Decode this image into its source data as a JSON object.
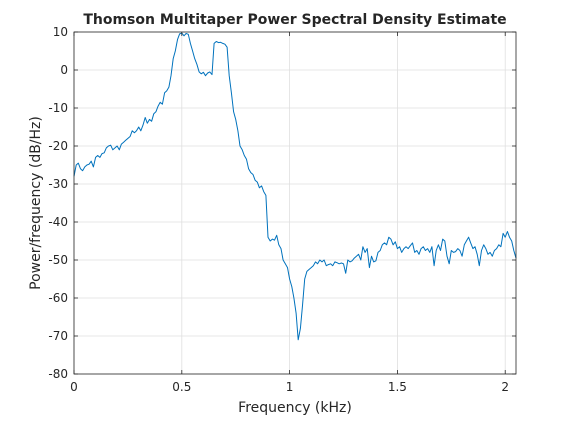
{
  "chart_data": {
    "type": "line",
    "title": "Thomson Multitaper Power Spectral Density Estimate",
    "xlabel": "Frequency (kHz)",
    "ylabel": "Power/frequency (dB/Hz)",
    "xlim": [
      0,
      2.05
    ],
    "ylim": [
      -80,
      10
    ],
    "xticks": [
      0,
      0.5,
      1,
      1.5,
      2
    ],
    "xtick_labels": [
      "0",
      "0.5",
      "1",
      "1.5",
      "2"
    ],
    "yticks": [
      10,
      0,
      -10,
      -20,
      -30,
      -40,
      -50,
      -60,
      -70,
      -80
    ],
    "ytick_labels": [
      "10",
      "0",
      "-10",
      "-20",
      "-30",
      "-40",
      "-50",
      "-60",
      "-70",
      "-80"
    ],
    "grid": true,
    "line_color": "#0072bd",
    "series": [
      {
        "x": [
          0,
          0.01,
          0.02,
          0.03,
          0.04,
          0.05,
          0.06,
          0.07,
          0.08,
          0.09,
          0.1,
          0.11,
          0.12,
          0.13,
          0.14,
          0.15,
          0.16,
          0.17,
          0.18,
          0.19,
          0.2,
          0.21,
          0.22,
          0.23,
          0.24,
          0.25,
          0.26,
          0.27,
          0.28,
          0.29,
          0.3,
          0.31,
          0.32,
          0.33,
          0.34,
          0.35,
          0.36,
          0.37,
          0.38,
          0.39,
          0.4,
          0.41,
          0.42,
          0.43,
          0.44,
          0.45,
          0.46,
          0.47,
          0.48,
          0.49,
          0.5,
          0.51,
          0.52,
          0.53,
          0.54,
          0.55,
          0.56,
          0.57,
          0.58,
          0.59,
          0.6,
          0.61,
          0.62,
          0.63,
          0.64,
          0.65,
          0.66,
          0.67,
          0.68,
          0.69,
          0.7,
          0.71,
          0.72,
          0.73,
          0.74,
          0.75,
          0.76,
          0.77,
          0.78,
          0.79,
          0.8,
          0.81,
          0.82,
          0.83,
          0.84,
          0.85,
          0.86,
          0.87,
          0.88,
          0.89,
          0.9,
          0.91,
          0.92,
          0.93,
          0.94,
          0.95,
          0.96,
          0.97,
          0.98,
          0.99,
          1,
          1.01,
          1.02,
          1.03,
          1.04,
          1.05,
          1.06,
          1.07,
          1.08,
          1.09,
          1.1,
          1.11,
          1.12,
          1.13,
          1.14,
          1.15,
          1.16,
          1.17,
          1.18,
          1.19,
          1.2,
          1.21,
          1.22,
          1.23,
          1.24,
          1.25,
          1.26,
          1.27,
          1.28,
          1.29,
          1.3,
          1.31,
          1.32,
          1.33,
          1.34,
          1.35,
          1.36,
          1.37,
          1.38,
          1.39,
          1.4,
          1.41,
          1.42,
          1.43,
          1.44,
          1.45,
          1.46,
          1.47,
          1.48,
          1.49,
          1.5,
          1.51,
          1.52,
          1.53,
          1.54,
          1.55,
          1.56,
          1.57,
          1.58,
          1.59,
          1.6,
          1.61,
          1.62,
          1.63,
          1.64,
          1.65,
          1.66,
          1.67,
          1.68,
          1.69,
          1.7,
          1.71,
          1.72,
          1.73,
          1.74,
          1.75,
          1.76,
          1.77,
          1.78,
          1.79,
          1.8,
          1.81,
          1.82,
          1.83,
          1.84,
          1.85,
          1.86,
          1.87,
          1.88,
          1.89,
          1.9,
          1.91,
          1.92,
          1.93,
          1.94,
          1.95,
          1.96,
          1.97,
          1.98,
          1.99,
          2,
          2.01,
          2.02,
          2.03,
          2.04,
          2.05
        ],
        "y": [
          -28,
          -25,
          -24.5,
          -26,
          -26.5,
          -25.5,
          -25,
          -24.8,
          -24,
          -25.5,
          -23,
          -22.5,
          -23,
          -22,
          -21.8,
          -20.5,
          -20,
          -19.8,
          -21,
          -20.5,
          -20,
          -21,
          -19.5,
          -19,
          -18.5,
          -18,
          -17.5,
          -16,
          -16.5,
          -16,
          -15,
          -16,
          -14.5,
          -12.5,
          -14,
          -13,
          -13.5,
          -11.5,
          -11,
          -9.5,
          -8.5,
          -9,
          -6,
          -5.5,
          -4.5,
          -1.5,
          3,
          5,
          8,
          9.5,
          9.7,
          9,
          9.6,
          9.4,
          7,
          5,
          3,
          1.5,
          -0.5,
          -1,
          -0.6,
          -1.5,
          -0.8,
          -0.5,
          -1.2,
          7,
          7.5,
          7.2,
          7.3,
          7,
          6.8,
          6,
          -1.5,
          -6,
          -11,
          -13,
          -16,
          -20,
          -21,
          -22.5,
          -23.5,
          -26,
          -27,
          -27.5,
          -29,
          -29.5,
          -31,
          -30.5,
          -32,
          -33,
          -44,
          -45,
          -44.5,
          -44.8,
          -43.5,
          -46,
          -47,
          -50,
          -51,
          -52,
          -55,
          -57,
          -60,
          -64,
          -71,
          -68,
          -62,
          -55,
          -53,
          -52.5,
          -52,
          -51.5,
          -50.5,
          -51,
          -50,
          -50.5,
          -50,
          -51.5,
          -51.2,
          -51,
          -51.5,
          -50.5,
          -50.7,
          -51,
          -50.8,
          -51,
          -53.5,
          -50,
          -50.5,
          -50.2,
          -49.5,
          -49,
          -48.5,
          -50,
          -46.5,
          -48,
          -47,
          -52,
          -49,
          -50.5,
          -50.2,
          -48,
          -47.5,
          -46,
          -45.5,
          -46,
          -44,
          -44.5,
          -46,
          -45.2,
          -47,
          -46.5,
          -48,
          -47,
          -46.5,
          -47,
          -46.2,
          -45.5,
          -48,
          -47.5,
          -48.5,
          -47,
          -46.5,
          -47.5,
          -47,
          -48,
          -46.5,
          -51.5,
          -47.5,
          -46,
          -47.5,
          -44.5,
          -45,
          -49,
          -51,
          -47.5,
          -48,
          -47.8,
          -47,
          -47.5,
          -49,
          -46,
          -45,
          -44,
          -45.5,
          -47,
          -46.5,
          -48.5,
          -51.5,
          -47.5,
          -46,
          -47,
          -48.5,
          -48,
          -49,
          -47.5,
          -47,
          -46,
          -46.5,
          -43,
          -44,
          -42.5,
          -44,
          -45,
          -47.5,
          -49.5
        ]
      }
    ]
  }
}
